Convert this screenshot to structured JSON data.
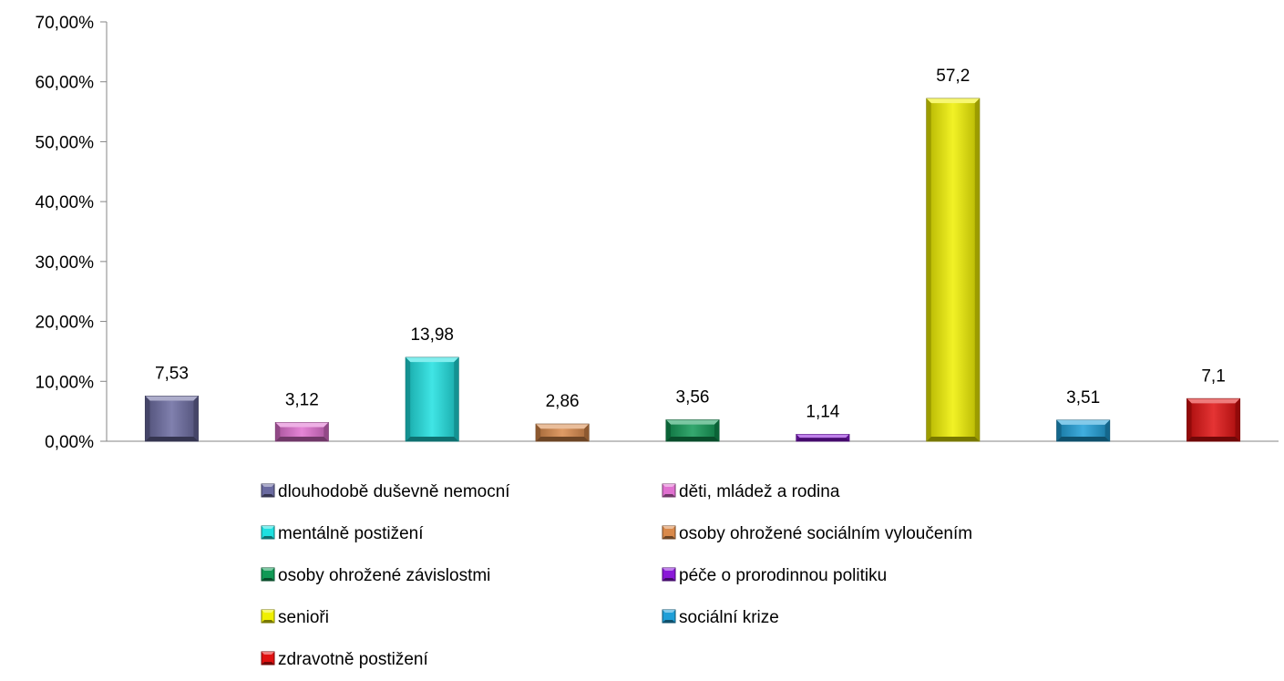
{
  "chart_data": {
    "type": "bar",
    "title": "",
    "xlabel": "",
    "ylabel": "",
    "ylim": [
      0,
      70
    ],
    "yticks": [
      "0,00%",
      "10,00%",
      "20,00%",
      "30,00%",
      "40,00%",
      "50,00%",
      "60,00%",
      "70,00%"
    ],
    "grid": false,
    "legend_position": "bottom",
    "series": [
      {
        "name": "dlouhodobě duševně nemocní",
        "value": 7.53,
        "label": "7,53",
        "color": "#6a6aa0"
      },
      {
        "name": "děti, mládež a rodina",
        "value": 3.12,
        "label": "3,12",
        "color": "#e070d0"
      },
      {
        "name": "mentálně postižení",
        "value": 13.98,
        "label": "13,98",
        "color": "#1ee0e0"
      },
      {
        "name": "osoby ohrožené sociálním vyloučením",
        "value": 2.86,
        "label": "2,86",
        "color": "#d9894a"
      },
      {
        "name": "osoby ohrožené závislostmi",
        "value": 3.56,
        "label": "3,56",
        "color": "#119955"
      },
      {
        "name": "péče o prorodinnou politiku",
        "value": 1.14,
        "label": "1,14",
        "color": "#8a18d8"
      },
      {
        "name": "senioři",
        "value": 57.2,
        "label": "57,2",
        "color": "#f0f000"
      },
      {
        "name": "sociální krize",
        "value": 3.51,
        "label": "3,51",
        "color": "#1e9fd8"
      },
      {
        "name": "zdravotně postižení",
        "value": 7.1,
        "label": "7,1",
        "color": "#e01010"
      }
    ]
  }
}
